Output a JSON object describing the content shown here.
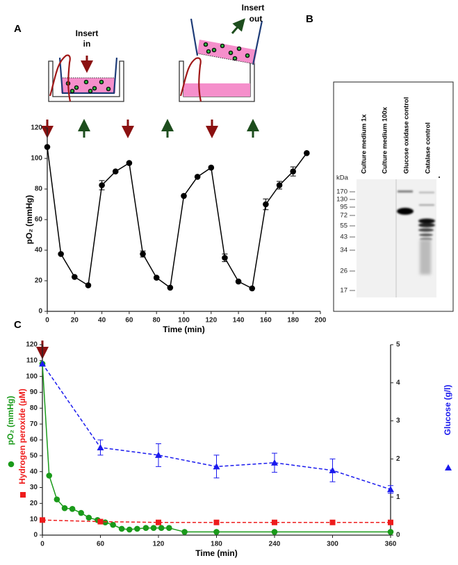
{
  "panels": [
    "A",
    "B",
    "C"
  ],
  "schematic": {
    "insert_in": [
      "Insert",
      "in"
    ],
    "insert_out": [
      "Insert",
      "out"
    ]
  },
  "blot": {
    "lanes": [
      "Culture medium 1x",
      "Culture medium 100x",
      "Glucose oxidase control",
      "Catalase  control"
    ],
    "unit": "kDa",
    "markers": [
      170,
      130,
      95,
      72,
      55,
      43,
      34,
      26,
      17
    ]
  },
  "chart_data": [
    {
      "type": "line",
      "xlabel": "Time (min)",
      "ylabel": "pO₂ (mmHg)",
      "xlim": [
        0,
        200
      ],
      "xticks": [
        0,
        20,
        40,
        60,
        80,
        100,
        120,
        140,
        160,
        180,
        200
      ],
      "ylim": [
        0,
        120
      ],
      "yticks": [
        0,
        20,
        40,
        60,
        80,
        100,
        120
      ],
      "x": [
        0,
        10,
        20,
        30,
        40,
        50,
        60,
        70,
        80,
        90,
        100,
        110,
        120,
        130,
        140,
        150,
        160,
        170,
        180,
        190
      ],
      "series": [
        {
          "color": "#000000",
          "marker": "circle",
          "values": [
            107.5,
            37.5,
            22.5,
            17,
            82.5,
            91.5,
            97,
            37.5,
            22,
            15.5,
            75.5,
            88,
            94,
            35,
            19.5,
            15,
            70,
            82.5,
            91.5,
            103.5
          ],
          "errors": [
            null,
            null,
            null,
            null,
            3,
            null,
            null,
            2,
            null,
            null,
            null,
            null,
            null,
            2.5,
            null,
            null,
            3.5,
            2.5,
            3,
            null
          ]
        }
      ]
    },
    {
      "type": "line",
      "xlabel": "Time (min)",
      "xlim": [
        0,
        360
      ],
      "xticks": [
        0,
        60,
        120,
        180,
        240,
        300,
        360
      ],
      "ylim": [
        0,
        120
      ],
      "yticks": [
        0,
        10,
        20,
        30,
        40,
        50,
        60,
        70,
        80,
        90,
        100,
        110,
        120
      ],
      "y2lim": [
        0,
        5
      ],
      "y2ticks": [
        0,
        1,
        2,
        3,
        4,
        5
      ],
      "series": [
        {
          "name": "pO₂ (mmHg)",
          "color": "#1a9a1a",
          "marker": "circle",
          "dash": false,
          "x": [
            0,
            7,
            15,
            23,
            31,
            40,
            48,
            57,
            65,
            73,
            82,
            90,
            98,
            107,
            115,
            123,
            131,
            147,
            180,
            240,
            360
          ],
          "values": [
            108,
            37.5,
            22.5,
            17,
            16.5,
            14,
            11,
            9.5,
            8,
            6.5,
            4,
            3.5,
            4,
            4.5,
            4.5,
            4.5,
            4.5,
            2,
            2,
            2,
            2
          ]
        },
        {
          "name": "Hydrogen peroxide (µM)",
          "color": "#ee1c1c",
          "marker": "square",
          "dash": true,
          "x": [
            0,
            60,
            120,
            180,
            240,
            300,
            360
          ],
          "values": [
            9.5,
            8.5,
            8,
            8,
            8,
            8,
            8
          ]
        },
        {
          "name": "Glucose (g/l)",
          "color": "#1a1aee",
          "marker": "triangle",
          "dash": true,
          "axis": "y2",
          "x": [
            0,
            60,
            120,
            180,
            240,
            300,
            360
          ],
          "values": [
            4.5,
            2.3,
            2.1,
            1.8,
            1.9,
            1.7,
            1.2
          ],
          "errors": [
            null,
            0.2,
            0.3,
            0.3,
            0.25,
            0.3,
            0.1
          ]
        }
      ]
    }
  ]
}
